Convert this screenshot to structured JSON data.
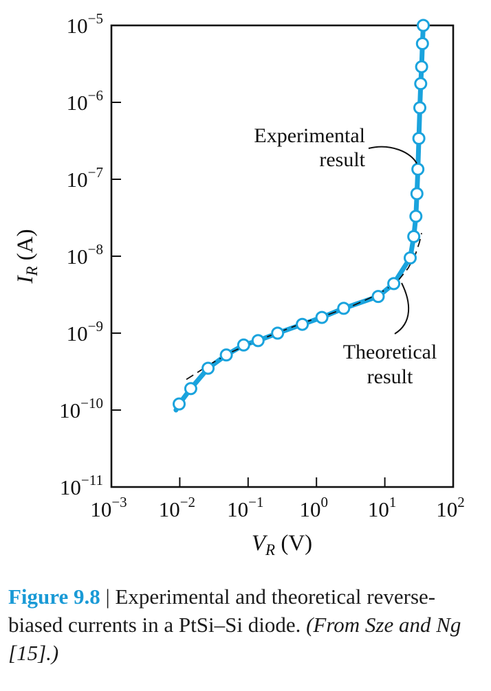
{
  "chart_data": {
    "type": "line",
    "x_scale": "log",
    "y_scale": "log",
    "xlim": [
      0.001,
      100
    ],
    "ylim": [
      1e-11,
      1e-05
    ],
    "x_ticks": [
      0.001,
      0.01,
      0.1,
      1,
      10,
      100
    ],
    "y_ticks": [
      1e-11,
      1e-10,
      1e-09,
      1e-08,
      1e-07,
      1e-06,
      1e-05
    ],
    "x_tick_labels": [
      {
        "base": "10",
        "exp": "−3"
      },
      {
        "base": "10",
        "exp": "−2"
      },
      {
        "base": "10",
        "exp": "−1"
      },
      {
        "base": "10",
        "exp": "0"
      },
      {
        "base": "10",
        "exp": "1"
      },
      {
        "base": "10",
        "exp": "2"
      }
    ],
    "y_tick_labels": [
      {
        "base": "10",
        "exp": "−11"
      },
      {
        "base": "10",
        "exp": "−10"
      },
      {
        "base": "10",
        "exp": "−9"
      },
      {
        "base": "10",
        "exp": "−8"
      },
      {
        "base": "10",
        "exp": "−7"
      },
      {
        "base": "10",
        "exp": "−6"
      },
      {
        "base": "10",
        "exp": "−5"
      }
    ],
    "xlabel": {
      "main": "V",
      "sub": "R",
      "unit": " (V)"
    },
    "ylabel": {
      "main": "I",
      "sub": "R",
      "unit": " (A)"
    },
    "grid": false,
    "series": [
      {
        "role": "experimental",
        "color": "#1aa3dd",
        "style": "thick solid line with open circle markers",
        "x": [
          0.0088,
          0.0098,
          0.0145,
          0.026,
          0.048,
          0.086,
          0.14,
          0.27,
          0.62,
          1.2,
          2.5,
          8.0,
          13.5,
          23.5,
          26.5,
          28.5,
          29.5,
          30.5,
          31.5,
          32.5,
          33.5,
          34.5,
          35.5,
          36.5
        ],
        "y": [
          1e-10,
          1.2e-10,
          1.9e-10,
          3.5e-10,
          5.2e-10,
          7e-10,
          8e-10,
          1e-09,
          1.3e-09,
          1.6e-09,
          2.1e-09,
          3e-09,
          4.4e-09,
          9.5e-09,
          1.8e-08,
          3.3e-08,
          6.5e-08,
          1.35e-07,
          3.4e-07,
          8.5e-07,
          1.75e-06,
          2.9e-06,
          5.8e-06,
          1e-05
        ],
        "markers": [
          false,
          true,
          true,
          true,
          true,
          true,
          true,
          true,
          true,
          true,
          true,
          true,
          true,
          true,
          true,
          true,
          true,
          true,
          true,
          true,
          true,
          true,
          true,
          true
        ]
      },
      {
        "role": "theoretical",
        "color": "#111111",
        "style": "dashed",
        "x": [
          0.0125,
          0.03,
          0.06,
          0.12,
          0.3,
          0.7,
          1.5,
          3.5,
          8.0,
          15.0,
          22.0,
          28.0,
          32.0,
          34.5
        ],
        "y": [
          2.5e-10,
          4.1e-10,
          5.8e-10,
          7.6e-10,
          1.05e-09,
          1.4e-09,
          1.75e-09,
          2.3e-09,
          3.2e-09,
          4.6e-09,
          7e-09,
          1.05e-08,
          1.5e-08,
          2e-08
        ]
      }
    ],
    "annotations": [
      {
        "lines": [
          "Experimental",
          "result"
        ]
      },
      {
        "lines": [
          "Theoretical",
          "result"
        ]
      }
    ]
  },
  "caption": {
    "label": "Figure 9.8",
    "separator": " | ",
    "text": "Experimental and theoretical reverse-biased currents in a PtSi–Si diode.",
    "source": "(From Sze and Ng [15].)"
  }
}
